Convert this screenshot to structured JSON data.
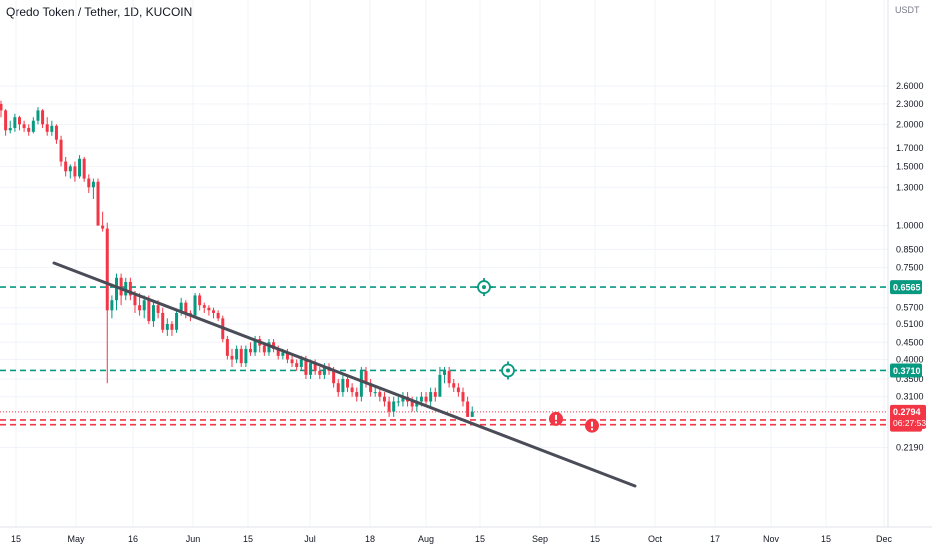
{
  "header": {
    "title": "Qredo Token / Tether, 1D, KUCOIN"
  },
  "price_axis": {
    "currency": "USDT",
    "ticks": [
      "2.6000",
      "2.3000",
      "2.0000",
      "1.7000",
      "1.5000",
      "1.3000",
      "1.0000",
      "0.8500",
      "0.7500",
      "0.5700",
      "0.5100",
      "0.4500",
      "0.4000",
      "0.3500",
      "0.3100",
      "0.2190"
    ]
  },
  "time_axis": {
    "ticks": [
      "15",
      "May",
      "16",
      "Jun",
      "15",
      "Jul",
      "18",
      "Aug",
      "15",
      "Sep",
      "15",
      "Oct",
      "17",
      "Nov",
      "15",
      "Dec"
    ]
  },
  "levels": [
    {
      "name": "resistance-upper",
      "price": 0.6565,
      "label": "0.6565",
      "color": "#089981",
      "style": "dashed"
    },
    {
      "name": "resistance-lower",
      "price": 0.371,
      "label": "0.3710",
      "color": "#089981",
      "style": "dashed"
    },
    {
      "name": "support-upper",
      "price": 0.2645,
      "label": "0.2645",
      "color": "#f23645",
      "style": "dashed"
    },
    {
      "name": "support-lower",
      "price": 0.256,
      "label": "0.2560",
      "color": "#f23645",
      "style": "dashed"
    }
  ],
  "current_price": {
    "label": "0.2794",
    "countdown": "06:27:53",
    "color": "#f23645"
  },
  "colors": {
    "up": "#089981",
    "down": "#f23645",
    "trendline": "#4a4d57",
    "grid": "#f0f3fa"
  },
  "icons": [
    "target-icon",
    "target-icon",
    "alert-icon",
    "alert-icon"
  ],
  "chart_data": {
    "type": "candlestick",
    "title": "Qredo Token / Tether, 1D, KUCOIN",
    "y_scale": "log",
    "ylim": [
      0.21,
      2.8
    ],
    "candles_ohlc": [
      [
        2.3,
        2.35,
        2.1,
        2.2
      ],
      [
        2.2,
        2.22,
        1.85,
        1.92
      ],
      [
        1.92,
        2.05,
        1.88,
        1.95
      ],
      [
        1.95,
        2.15,
        1.9,
        2.1
      ],
      [
        2.1,
        2.12,
        1.92,
        2.0
      ],
      [
        2.0,
        2.05,
        1.9,
        1.95
      ],
      [
        1.95,
        2.0,
        1.85,
        1.9
      ],
      [
        1.9,
        2.1,
        1.88,
        2.05
      ],
      [
        2.05,
        2.25,
        2.0,
        2.2
      ],
      [
        2.2,
        2.22,
        1.95,
        2.0
      ],
      [
        2.0,
        2.1,
        1.85,
        1.9
      ],
      [
        1.9,
        2.05,
        1.85,
        1.98
      ],
      [
        1.98,
        2.0,
        1.75,
        1.8
      ],
      [
        1.8,
        1.85,
        1.5,
        1.55
      ],
      [
        1.55,
        1.6,
        1.4,
        1.45
      ],
      [
        1.45,
        1.52,
        1.38,
        1.5
      ],
      [
        1.5,
        1.55,
        1.35,
        1.4
      ],
      [
        1.4,
        1.62,
        1.38,
        1.58
      ],
      [
        1.58,
        1.6,
        1.35,
        1.38
      ],
      [
        1.38,
        1.42,
        1.25,
        1.3
      ],
      [
        1.3,
        1.38,
        1.2,
        1.35
      ],
      [
        1.35,
        1.38,
        1.0,
        1.0
      ],
      [
        1.0,
        1.1,
        0.96,
        0.98
      ],
      [
        0.98,
        1.02,
        0.34,
        0.56
      ],
      [
        0.56,
        0.62,
        0.53,
        0.6
      ],
      [
        0.6,
        0.72,
        0.56,
        0.7
      ],
      [
        0.7,
        0.72,
        0.58,
        0.62
      ],
      [
        0.62,
        0.7,
        0.6,
        0.68
      ],
      [
        0.68,
        0.7,
        0.6,
        0.62
      ],
      [
        0.62,
        0.64,
        0.55,
        0.58
      ],
      [
        0.58,
        0.63,
        0.54,
        0.56
      ],
      [
        0.56,
        0.62,
        0.53,
        0.6
      ],
      [
        0.6,
        0.62,
        0.51,
        0.52
      ],
      [
        0.52,
        0.6,
        0.5,
        0.58
      ],
      [
        0.58,
        0.6,
        0.53,
        0.55
      ],
      [
        0.55,
        0.57,
        0.48,
        0.49
      ],
      [
        0.49,
        0.53,
        0.47,
        0.51
      ],
      [
        0.51,
        0.52,
        0.47,
        0.49
      ],
      [
        0.49,
        0.56,
        0.48,
        0.55
      ],
      [
        0.55,
        0.61,
        0.54,
        0.59
      ],
      [
        0.59,
        0.6,
        0.53,
        0.55
      ],
      [
        0.55,
        0.56,
        0.52,
        0.54
      ],
      [
        0.54,
        0.63,
        0.53,
        0.62
      ],
      [
        0.62,
        0.63,
        0.56,
        0.58
      ],
      [
        0.58,
        0.59,
        0.55,
        0.57
      ],
      [
        0.57,
        0.58,
        0.54,
        0.56
      ],
      [
        0.56,
        0.57,
        0.53,
        0.55
      ],
      [
        0.55,
        0.56,
        0.52,
        0.53
      ],
      [
        0.53,
        0.54,
        0.45,
        0.46
      ],
      [
        0.46,
        0.47,
        0.4,
        0.41
      ],
      [
        0.41,
        0.43,
        0.38,
        0.4
      ],
      [
        0.4,
        0.44,
        0.39,
        0.43
      ],
      [
        0.43,
        0.44,
        0.38,
        0.39
      ],
      [
        0.39,
        0.44,
        0.38,
        0.43
      ],
      [
        0.43,
        0.45,
        0.41,
        0.42
      ],
      [
        0.42,
        0.47,
        0.41,
        0.46
      ],
      [
        0.46,
        0.47,
        0.42,
        0.44
      ],
      [
        0.44,
        0.45,
        0.41,
        0.42
      ],
      [
        0.42,
        0.46,
        0.41,
        0.45
      ],
      [
        0.45,
        0.46,
        0.42,
        0.43
      ],
      [
        0.43,
        0.44,
        0.4,
        0.41
      ],
      [
        0.41,
        0.43,
        0.4,
        0.42
      ],
      [
        0.42,
        0.43,
        0.39,
        0.4
      ],
      [
        0.4,
        0.41,
        0.38,
        0.39
      ],
      [
        0.39,
        0.4,
        0.37,
        0.38
      ],
      [
        0.38,
        0.41,
        0.37,
        0.4
      ],
      [
        0.4,
        0.41,
        0.35,
        0.36
      ],
      [
        0.36,
        0.4,
        0.35,
        0.39
      ],
      [
        0.39,
        0.4,
        0.36,
        0.37
      ],
      [
        0.37,
        0.38,
        0.35,
        0.36
      ],
      [
        0.36,
        0.39,
        0.35,
        0.38
      ],
      [
        0.38,
        0.39,
        0.36,
        0.37
      ],
      [
        0.37,
        0.38,
        0.33,
        0.34
      ],
      [
        0.34,
        0.35,
        0.31,
        0.32
      ],
      [
        0.32,
        0.36,
        0.31,
        0.35
      ],
      [
        0.35,
        0.36,
        0.32,
        0.33
      ],
      [
        0.33,
        0.34,
        0.31,
        0.32
      ],
      [
        0.32,
        0.33,
        0.3,
        0.31
      ],
      [
        0.31,
        0.38,
        0.3,
        0.37
      ],
      [
        0.37,
        0.38,
        0.33,
        0.34
      ],
      [
        0.34,
        0.35,
        0.31,
        0.32
      ],
      [
        0.32,
        0.33,
        0.31,
        0.32
      ],
      [
        0.32,
        0.33,
        0.3,
        0.31
      ],
      [
        0.31,
        0.32,
        0.29,
        0.3
      ],
      [
        0.3,
        0.31,
        0.27,
        0.28
      ],
      [
        0.28,
        0.31,
        0.27,
        0.3
      ],
      [
        0.3,
        0.31,
        0.29,
        0.3
      ],
      [
        0.3,
        0.32,
        0.29,
        0.31
      ],
      [
        0.31,
        0.32,
        0.29,
        0.3
      ],
      [
        0.3,
        0.31,
        0.28,
        0.29
      ],
      [
        0.29,
        0.31,
        0.28,
        0.3
      ],
      [
        0.3,
        0.32,
        0.29,
        0.31
      ],
      [
        0.31,
        0.32,
        0.29,
        0.3
      ],
      [
        0.3,
        0.33,
        0.29,
        0.32
      ],
      [
        0.32,
        0.33,
        0.3,
        0.31
      ],
      [
        0.31,
        0.38,
        0.31,
        0.36
      ],
      [
        0.36,
        0.38,
        0.34,
        0.37
      ],
      [
        0.37,
        0.38,
        0.33,
        0.34
      ],
      [
        0.34,
        0.35,
        0.32,
        0.33
      ],
      [
        0.33,
        0.34,
        0.31,
        0.32
      ],
      [
        0.32,
        0.33,
        0.29,
        0.3
      ],
      [
        0.3,
        0.31,
        0.27,
        0.27
      ],
      [
        0.27,
        0.29,
        0.27,
        0.28
      ]
    ]
  }
}
